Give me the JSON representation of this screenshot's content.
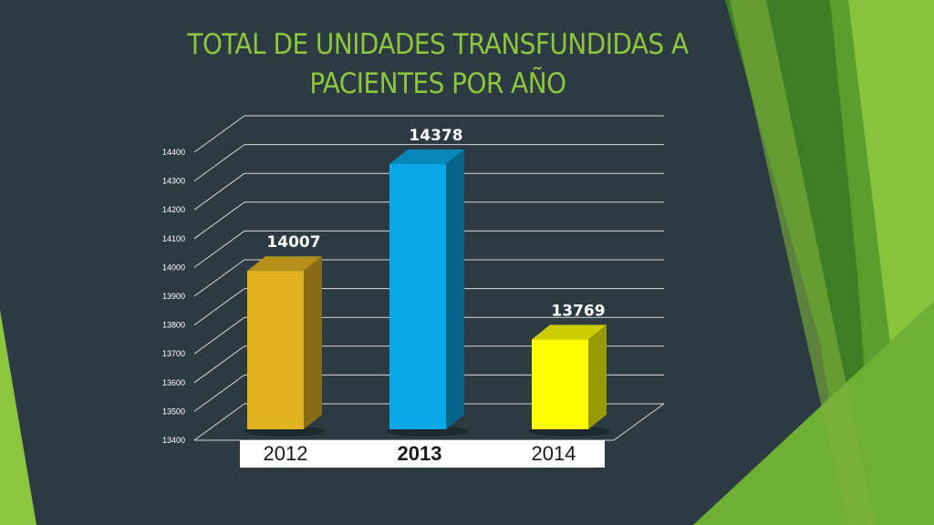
{
  "slide": {
    "title_line1": "TOTAL DE UNIDADES TRANSFUNDIDAS A",
    "title_line2": "PACIENTES POR AÑO"
  },
  "colors": {
    "background": "#2c3a42",
    "title": "#8cc63f",
    "accent_green_dark": "#4a8a22",
    "accent_green_light": "#8cc63f"
  },
  "chart_data": {
    "type": "bar",
    "title": "TOTAL DE UNIDADES TRANSFUNDIDAS A PACIENTES POR AÑO",
    "categories": [
      "2012",
      "2013",
      "2014"
    ],
    "values": [
      14007,
      14378,
      13769
    ],
    "data_labels": [
      "14007",
      "14378",
      "13769"
    ],
    "bar_colors": [
      "#e2b321",
      "#08a9e6",
      "#ffff00"
    ],
    "ylim": [
      13400,
      14400
    ],
    "yticks": [
      "13400",
      "13500",
      "13600",
      "13700",
      "13800",
      "13900",
      "14000",
      "14100",
      "14200",
      "14300",
      "14400"
    ],
    "grid": true,
    "three_d": true,
    "legend": "none"
  }
}
